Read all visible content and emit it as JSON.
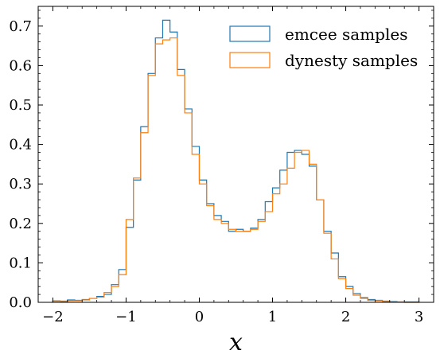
{
  "chart_data": {
    "type": "histogram-step",
    "xlabel": "x",
    "ylabel": "",
    "xlim": [
      -2.2,
      3.2
    ],
    "ylim": [
      0,
      0.75
    ],
    "xticks": [
      -2,
      -1,
      0,
      1,
      2,
      3
    ],
    "xtick_labels": [
      "−2",
      "−1",
      "0",
      "1",
      "2",
      "3"
    ],
    "yticks": [
      0,
      0.1,
      0.2,
      0.3,
      0.4,
      0.5,
      0.6,
      0.7
    ],
    "ytick_labels": [
      "0.0",
      "0.1",
      "0.2",
      "0.3",
      "0.4",
      "0.5",
      "0.6",
      "0.7"
    ],
    "bin_edges": [
      -2.0,
      -1.9,
      -1.8,
      -1.7,
      -1.6,
      -1.5,
      -1.4,
      -1.3,
      -1.2,
      -1.1,
      -1.0,
      -0.9,
      -0.8,
      -0.7,
      -0.6,
      -0.5,
      -0.4,
      -0.3,
      -0.2,
      -0.1,
      0.0,
      0.1,
      0.2,
      0.3,
      0.4,
      0.5,
      0.6,
      0.7,
      0.8,
      0.9,
      1.0,
      1.1,
      1.2,
      1.3,
      1.4,
      1.5,
      1.6,
      1.7,
      1.8,
      1.9,
      2.0,
      2.1,
      2.2,
      2.3,
      2.4,
      2.5,
      2.6,
      2.7,
      2.8,
      2.9,
      3.0
    ],
    "legend_position": "top-right",
    "series": [
      {
        "name": "emcee samples",
        "color": "#1f77b4",
        "values": [
          0.003,
          0.003,
          0.006,
          0.005,
          0.007,
          0.01,
          0.015,
          0.02,
          0.045,
          0.083,
          0.19,
          0.31,
          0.445,
          0.58,
          0.67,
          0.715,
          0.685,
          0.59,
          0.49,
          0.395,
          0.31,
          0.25,
          0.22,
          0.205,
          0.18,
          0.185,
          0.18,
          0.188,
          0.21,
          0.255,
          0.29,
          0.335,
          0.38,
          0.385,
          0.375,
          0.345,
          0.26,
          0.18,
          0.125,
          0.065,
          0.04,
          0.022,
          0.012,
          0.007,
          0.005,
          0.003,
          0.002,
          0.001,
          0.001,
          0.001
        ]
      },
      {
        "name": "dynesty samples",
        "color": "#ff7f0e",
        "values": [
          0.004,
          0.002,
          0.004,
          0.004,
          0.006,
          0.01,
          0.013,
          0.025,
          0.04,
          0.07,
          0.21,
          0.315,
          0.43,
          0.575,
          0.655,
          0.665,
          0.67,
          0.575,
          0.48,
          0.375,
          0.3,
          0.245,
          0.21,
          0.2,
          0.185,
          0.18,
          0.18,
          0.185,
          0.205,
          0.23,
          0.275,
          0.3,
          0.34,
          0.38,
          0.385,
          0.35,
          0.26,
          0.175,
          0.11,
          0.06,
          0.035,
          0.018,
          0.01,
          0.005,
          0.004,
          0.002,
          0.001,
          0.001,
          0.0,
          0.0
        ]
      }
    ]
  }
}
